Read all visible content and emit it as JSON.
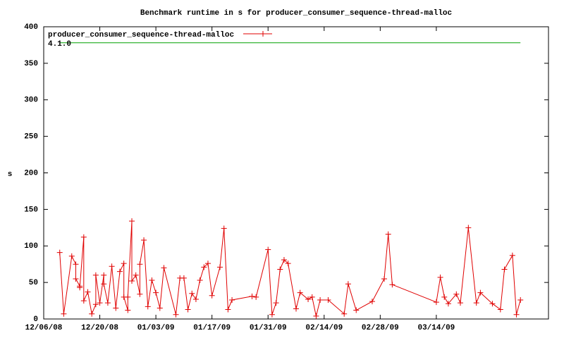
{
  "chart_data": {
    "type": "line",
    "title": "Benchmark runtime in s for producer_consumer_sequence-thread-malloc",
    "y_label": "s",
    "ylim": [
      0,
      400
    ],
    "yticks": [
      0,
      50,
      100,
      150,
      200,
      250,
      300,
      350,
      400
    ],
    "xlim": [
      "12/06/08",
      "04/11/09"
    ],
    "xticks": [
      "12/06/08",
      "12/20/08",
      "01/03/09",
      "01/17/09",
      "01/31/09",
      "02/14/09",
      "02/28/09",
      "03/14/09"
    ],
    "grid": false,
    "legend": "top-left",
    "series": [
      {
        "name": "producer_consumer_sequence-thread-malloc",
        "color": "#e00000",
        "marker": "+",
        "x": [
          "12/10/08",
          "12/11/08",
          "12/13/08",
          "12/14/08",
          "12/14/08",
          "12/15/08",
          "12/15/08",
          "12/16/08",
          "12/16/08",
          "12/17/08",
          "12/18/08",
          "12/19/08",
          "12/19/08",
          "12/20/08",
          "12/21/08",
          "12/21/08",
          "12/22/08",
          "12/23/08",
          "12/24/08",
          "12/25/08",
          "12/26/08",
          "12/26/08",
          "12/27/08",
          "12/27/08",
          "12/28/08",
          "12/28/08",
          "12/29/08",
          "12/30/08",
          "12/30/08",
          "12/31/08",
          "01/01/09",
          "01/02/09",
          "01/03/09",
          "01/04/09",
          "01/05/09",
          "01/08/09",
          "01/09/09",
          "01/10/09",
          "01/11/09",
          "01/12/09",
          "01/13/09",
          "01/14/09",
          "01/15/09",
          "01/16/09",
          "01/17/09",
          "01/19/09",
          "01/20/09",
          "01/21/09",
          "01/22/09",
          "01/27/09",
          "01/28/09",
          "01/31/09",
          "02/01/09",
          "02/02/09",
          "02/03/09",
          "02/04/09",
          "02/05/09",
          "02/07/09",
          "02/08/09",
          "02/10/09",
          "02/11/09",
          "02/12/09",
          "02/13/09",
          "02/15/09",
          "02/19/09",
          "02/20/09",
          "02/22/09",
          "02/26/09",
          "03/01/09",
          "03/02/09",
          "03/03/09",
          "03/14/09",
          "03/15/09",
          "03/16/09",
          "03/17/09",
          "03/19/09",
          "03/20/09",
          "03/22/09",
          "03/24/09",
          "03/25/09",
          "03/28/09",
          "03/30/09",
          "03/31/09",
          "04/02/09",
          "04/03/09",
          "04/04/09"
        ],
        "values": [
          91,
          7,
          86,
          75,
          55,
          45,
          43,
          112,
          25,
          37,
          7,
          20,
          60,
          22,
          60,
          48,
          22,
          72,
          15,
          65,
          76,
          30,
          12,
          30,
          134,
          52,
          60,
          34,
          75,
          108,
          17,
          53,
          36,
          15,
          70,
          6,
          56,
          56,
          13,
          35,
          27,
          53,
          71,
          76,
          32,
          71,
          124,
          13,
          26,
          31,
          30,
          95,
          6,
          22,
          68,
          81,
          76,
          14,
          36,
          27,
          30,
          4,
          26,
          26,
          7,
          48,
          12,
          24,
          55,
          116,
          47,
          23,
          57,
          30,
          21,
          34,
          22,
          125,
          22,
          36,
          21,
          13,
          68,
          87,
          6,
          26
        ]
      },
      {
        "name": "4.1.0",
        "color": "#00a000",
        "x": [
          "12/10/08",
          "04/04/09"
        ],
        "values": [
          378,
          378
        ]
      }
    ]
  }
}
